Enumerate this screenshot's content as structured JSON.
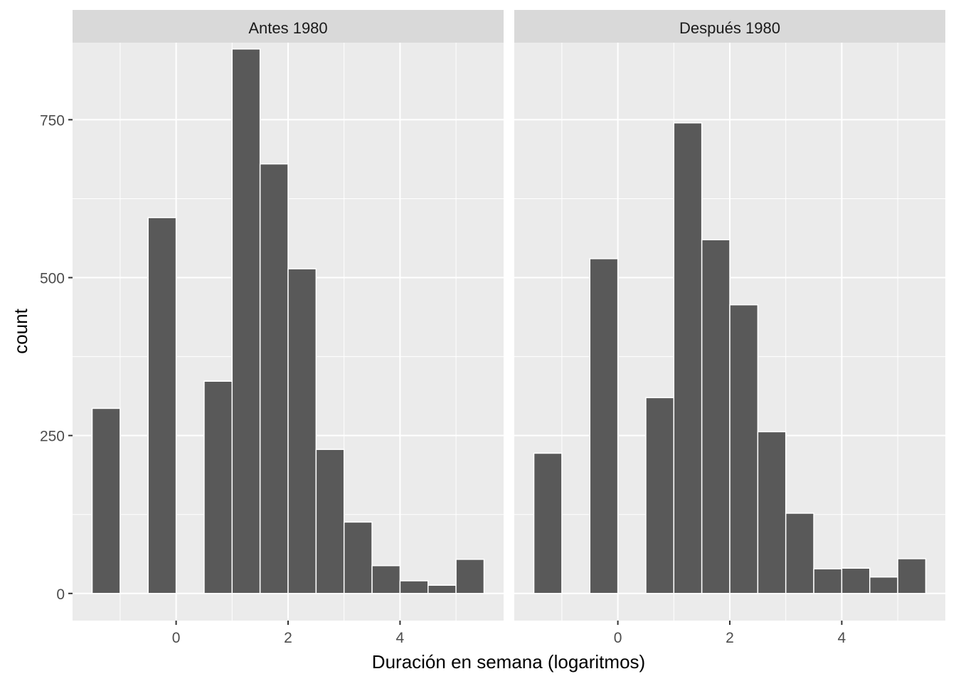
{
  "chart_data": {
    "type": "bar",
    "title": "",
    "xlabel": "Duración en semana (logaritmos)",
    "ylabel": "count",
    "xlim": [
      -1.85,
      5.85
    ],
    "ylim": [
      -43,
      872
    ],
    "x_ticks": [
      0,
      2,
      4
    ],
    "y_ticks": [
      0,
      250,
      500,
      750
    ],
    "grid": true,
    "bar_fill": "#595959",
    "bar_outline": "#ffffff",
    "panel_background": "#ebebeb",
    "strip_background": "#d9d9d9",
    "bin_width": 0.5,
    "panels": [
      {
        "label": "Antes 1980",
        "bins": [
          {
            "x0": -1.5,
            "x1": -1.0,
            "count": 293
          },
          {
            "x0": -0.5,
            "x1": 0.0,
            "count": 595
          },
          {
            "x0": 0.5,
            "x1": 1.0,
            "count": 336
          },
          {
            "x0": 1.0,
            "x1": 1.5,
            "count": 862
          },
          {
            "x0": 1.5,
            "x1": 2.0,
            "count": 680
          },
          {
            "x0": 2.0,
            "x1": 2.5,
            "count": 514
          },
          {
            "x0": 2.5,
            "x1": 3.0,
            "count": 228
          },
          {
            "x0": 3.0,
            "x1": 3.5,
            "count": 113
          },
          {
            "x0": 3.5,
            "x1": 4.0,
            "count": 44
          },
          {
            "x0": 4.0,
            "x1": 4.5,
            "count": 20
          },
          {
            "x0": 4.5,
            "x1": 5.0,
            "count": 13
          },
          {
            "x0": 5.0,
            "x1": 5.5,
            "count": 54
          }
        ]
      },
      {
        "label": "Después 1980",
        "bins": [
          {
            "x0": -1.5,
            "x1": -1.0,
            "count": 222
          },
          {
            "x0": -0.5,
            "x1": 0.0,
            "count": 530
          },
          {
            "x0": 0.5,
            "x1": 1.0,
            "count": 310
          },
          {
            "x0": 1.0,
            "x1": 1.5,
            "count": 745
          },
          {
            "x0": 1.5,
            "x1": 2.0,
            "count": 560
          },
          {
            "x0": 2.0,
            "x1": 2.5,
            "count": 457
          },
          {
            "x0": 2.5,
            "x1": 3.0,
            "count": 256
          },
          {
            "x0": 3.0,
            "x1": 3.5,
            "count": 127
          },
          {
            "x0": 3.5,
            "x1": 4.0,
            "count": 39
          },
          {
            "x0": 4.0,
            "x1": 4.5,
            "count": 40
          },
          {
            "x0": 4.5,
            "x1": 5.0,
            "count": 26
          },
          {
            "x0": 5.0,
            "x1": 5.5,
            "count": 55
          }
        ]
      }
    ]
  }
}
